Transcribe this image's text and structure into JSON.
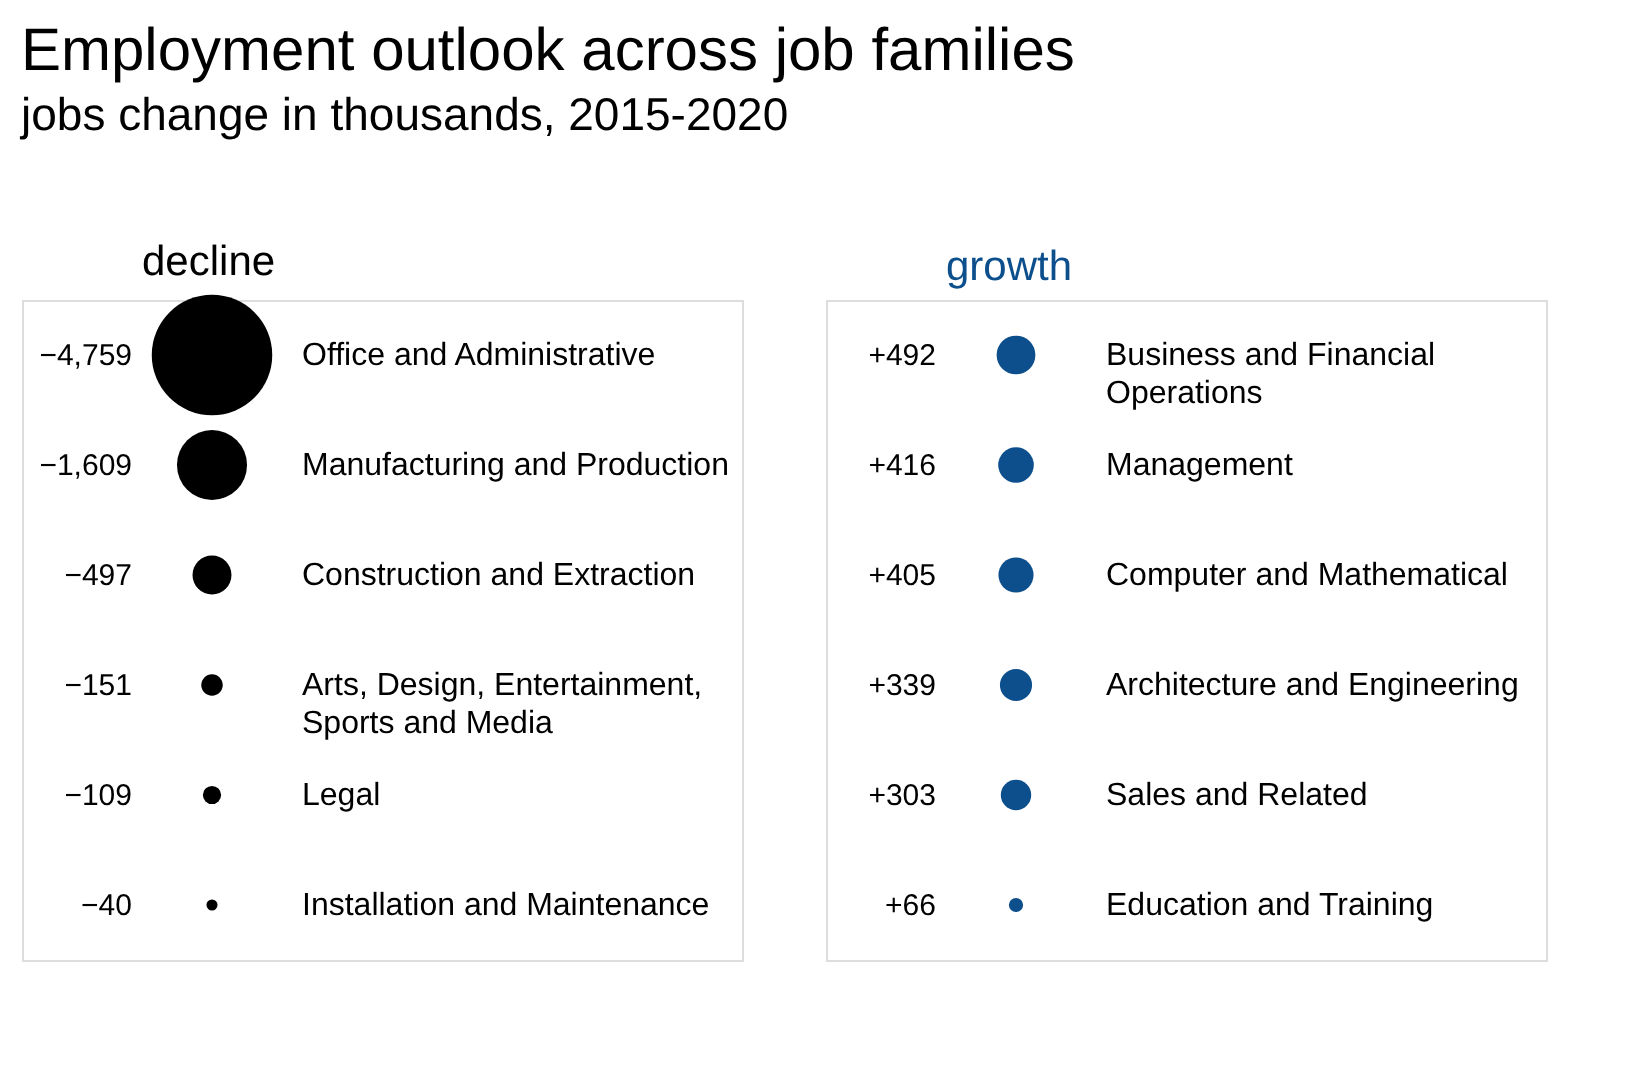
{
  "chart_data": [
    {
      "type": "other",
      "title": "Employment outlook across job families",
      "subtitle": "jobs change in thousands, 2015-2020",
      "categories": [
        "Office and Administrative",
        "Manufacturing and Production",
        "Construction and Extraction",
        "Arts, Design, Entertainment, Sports and Media",
        "Legal",
        "Installation and Maintenance"
      ],
      "series": [
        {
          "name": "decline",
          "color": "#000000",
          "values": [
            -4759,
            -1609,
            -497,
            -151,
            -109,
            -40
          ],
          "value_labels": [
            "−4,759",
            "−1,609",
            "−497",
            "−151",
            "−109",
            "−40"
          ]
        }
      ]
    },
    {
      "type": "other",
      "categories": [
        "Business and Financial Operations",
        "Management",
        "Computer and Mathematical",
        "Architecture and Engineering",
        "Sales and Related",
        "Education and Training"
      ],
      "series": [
        {
          "name": "growth",
          "color": "#0d4f8c",
          "values": [
            492,
            416,
            405,
            339,
            303,
            66
          ],
          "value_labels": [
            "+492",
            "+416",
            "+405",
            "+339",
            "+303",
            "+66"
          ]
        }
      ]
    }
  ]
}
